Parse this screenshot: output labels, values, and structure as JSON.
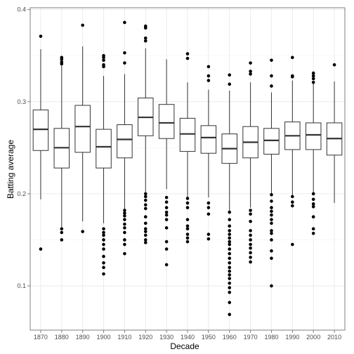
{
  "chart_data": {
    "type": "box",
    "title": "",
    "xlabel": "Decade",
    "ylabel": "Batting average",
    "ylim": [
      0.052,
      0.402
    ],
    "yticks": [
      0.1,
      0.2,
      0.3,
      0.4
    ],
    "ytick_labels": [
      "0.1",
      "0.2",
      "0.3",
      "0.4"
    ],
    "grid": true,
    "legend": "none",
    "colors": {
      "panel_border": "#7f7f7f",
      "grid_major": "#ebebeb",
      "grid_minor": "#f4f4f4",
      "box": "#333333",
      "point": "#000000"
    },
    "categories": [
      "1870",
      "1880",
      "1890",
      "1900",
      "1910",
      "1920",
      "1930",
      "1940",
      "1950",
      "1960",
      "1970",
      "1980",
      "1990",
      "2000",
      "2010"
    ],
    "boxes": [
      {
        "decade": "1870",
        "min": 0.194,
        "q1": 0.247,
        "median": 0.27,
        "q3": 0.291,
        "max": 0.357,
        "outliers": [
          0.371,
          0.14
        ]
      },
      {
        "decade": "1880",
        "min": 0.164,
        "q1": 0.228,
        "median": 0.25,
        "q3": 0.271,
        "max": 0.339,
        "outliers": [
          0.348,
          0.346,
          0.343,
          0.341,
          0.162,
          0.158,
          0.15
        ]
      },
      {
        "decade": "1890",
        "min": 0.17,
        "q1": 0.245,
        "median": 0.273,
        "q3": 0.296,
        "max": 0.36,
        "outliers": [
          0.383,
          0.159
        ]
      },
      {
        "decade": "1900",
        "min": 0.168,
        "q1": 0.228,
        "median": 0.251,
        "q3": 0.27,
        "max": 0.328,
        "outliers": [
          0.35,
          0.348,
          0.345,
          0.34,
          0.338,
          0.162,
          0.158,
          0.155,
          0.15,
          0.145,
          0.14,
          0.132,
          0.125,
          0.12,
          0.113
        ]
      },
      {
        "decade": "1910",
        "min": 0.183,
        "q1": 0.239,
        "median": 0.259,
        "q3": 0.275,
        "max": 0.33,
        "outliers": [
          0.386,
          0.353,
          0.342,
          0.182,
          0.179,
          0.176,
          0.172,
          0.167,
          0.163,
          0.158,
          0.15,
          0.145,
          0.135
        ]
      },
      {
        "decade": "1920",
        "min": 0.202,
        "q1": 0.263,
        "median": 0.283,
        "q3": 0.304,
        "max": 0.358,
        "outliers": [
          0.382,
          0.38,
          0.369,
          0.366,
          0.2,
          0.197,
          0.193,
          0.188,
          0.184,
          0.175,
          0.168,
          0.162,
          0.159,
          0.155,
          0.15,
          0.147
        ]
      },
      {
        "decade": "1930",
        "min": 0.205,
        "q1": 0.26,
        "median": 0.277,
        "q3": 0.297,
        "max": 0.346,
        "outliers": [
          0.196,
          0.191,
          0.185,
          0.18,
          0.177,
          0.172,
          0.163,
          0.148,
          0.14,
          0.123
        ]
      },
      {
        "decade": "1940",
        "min": 0.196,
        "q1": 0.246,
        "median": 0.265,
        "q3": 0.282,
        "max": 0.321,
        "outliers": [
          0.352,
          0.347,
          0.195,
          0.19,
          0.185,
          0.172,
          0.165,
          0.162,
          0.156,
          0.152,
          0.148
        ]
      },
      {
        "decade": "1950",
        "min": 0.196,
        "q1": 0.244,
        "median": 0.261,
        "q3": 0.274,
        "max": 0.313,
        "outliers": [
          0.338,
          0.328,
          0.323,
          0.19,
          0.185,
          0.178,
          0.156,
          0.151
        ]
      },
      {
        "decade": "1960",
        "min": 0.181,
        "q1": 0.233,
        "median": 0.249,
        "q3": 0.265,
        "max": 0.312,
        "outliers": [
          0.329,
          0.319,
          0.18,
          0.172,
          0.165,
          0.16,
          0.156,
          0.152,
          0.148,
          0.145,
          0.14,
          0.135,
          0.13,
          0.125,
          0.12,
          0.116,
          0.112,
          0.108,
          0.103,
          0.098,
          0.093,
          0.082,
          0.069
        ]
      },
      {
        "decade": "1970",
        "min": 0.185,
        "q1": 0.239,
        "median": 0.256,
        "q3": 0.273,
        "max": 0.321,
        "outliers": [
          0.342,
          0.333,
          0.33,
          0.182,
          0.178,
          0.17,
          0.16,
          0.155,
          0.15,
          0.145,
          0.141,
          0.136,
          0.131,
          0.126
        ]
      },
      {
        "decade": "1980",
        "min": 0.2,
        "q1": 0.243,
        "median": 0.258,
        "q3": 0.271,
        "max": 0.31,
        "outliers": [
          0.345,
          0.328,
          0.317,
          0.199,
          0.192,
          0.185,
          0.181,
          0.177,
          0.172,
          0.168,
          0.16,
          0.157,
          0.15,
          0.138,
          0.13,
          0.1
        ]
      },
      {
        "decade": "1990",
        "min": 0.199,
        "q1": 0.248,
        "median": 0.263,
        "q3": 0.278,
        "max": 0.323,
        "outliers": [
          0.348,
          0.328,
          0.327,
          0.197,
          0.191,
          0.187,
          0.145
        ]
      },
      {
        "decade": "2000",
        "min": 0.201,
        "q1": 0.248,
        "median": 0.264,
        "q3": 0.277,
        "max": 0.32,
        "outliers": [
          0.331,
          0.328,
          0.325,
          0.321,
          0.2,
          0.194,
          0.189,
          0.186,
          0.175,
          0.162,
          0.157
        ]
      },
      {
        "decade": "2010",
        "min": 0.19,
        "q1": 0.242,
        "median": 0.26,
        "q3": 0.277,
        "max": 0.322,
        "outliers": [
          0.34
        ]
      }
    ]
  }
}
